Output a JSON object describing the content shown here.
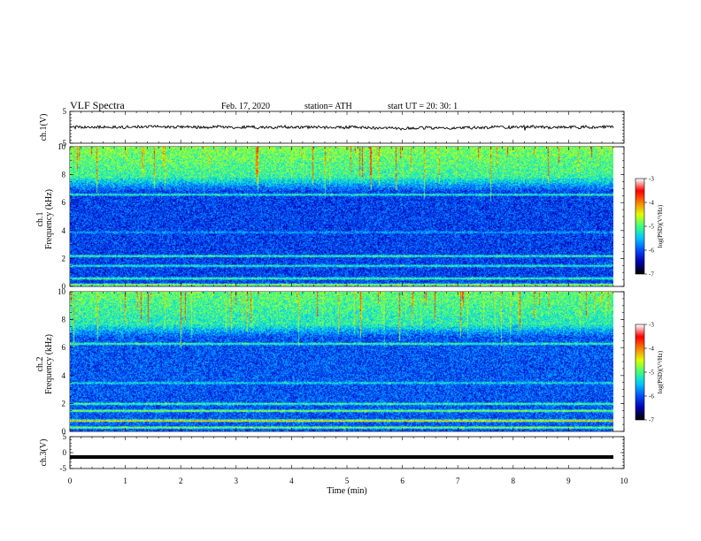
{
  "header": {
    "title": "VLF Spectra",
    "date": "Feb. 17, 2020",
    "station": "station= ATH",
    "start": "start UT =   20: 30: 1"
  },
  "chart_data": [
    {
      "type": "line",
      "panel": "ch1-waveform",
      "ylabel": "ch.1(V)",
      "ylim": [
        -5,
        5
      ],
      "yticks": [
        "5",
        "-5"
      ],
      "description_values": "noisy waveform around 0 V, amplitude ~ ±0.6 V",
      "series_color": "#000000"
    },
    {
      "type": "heatmap",
      "panel": "ch1-spectrogram",
      "ylabel": "ch.1\nFrequency (kHz)",
      "ylim": [
        0,
        10
      ],
      "yticks": [
        "0",
        "2",
        "4",
        "6",
        "8",
        "10"
      ],
      "xlim": [
        0,
        9.82
      ],
      "colorbar": {
        "label": "log(PSD)(V²/Hz)",
        "range": [
          -7,
          -3
        ],
        "ticks": [
          "-3",
          "-4",
          "-5",
          "-6",
          "-7"
        ],
        "colors": [
          "#000000",
          "#0000b0",
          "#0050ff",
          "#00c8ff",
          "#40ff80",
          "#e0ff00",
          "#ff8000",
          "#ff0000",
          "#ffffff"
        ]
      },
      "bands_khz": [
        {
          "f": 0.15,
          "v": -4.2
        },
        {
          "f": 0.6,
          "v": -4.8
        },
        {
          "f": 1.5,
          "v": -5.0
        },
        {
          "f": 2.2,
          "v": -4.9
        },
        {
          "f": 3.9,
          "v": -5.6
        },
        {
          "f": 6.6,
          "v": -5.0
        },
        {
          "f": 7.5,
          "v": -5.4
        }
      ],
      "background_level": -6.1,
      "high_freq_level": -5.1
    },
    {
      "type": "heatmap",
      "panel": "ch2-spectrogram",
      "ylabel": "ch.2\nFrequency (kHz)",
      "ylim": [
        0,
        10
      ],
      "yticks": [
        "0",
        "2",
        "4",
        "6",
        "8",
        "10"
      ],
      "xlim": [
        0,
        9.82
      ],
      "colorbar": {
        "label": "log(PSD)(V²/Hz)",
        "range": [
          -7,
          -3
        ],
        "ticks": [
          "-3",
          "-4",
          "-5",
          "-6",
          "-7"
        ],
        "colors": [
          "#000000",
          "#0000b0",
          "#0050ff",
          "#00c8ff",
          "#40ff80",
          "#e0ff00",
          "#ff8000",
          "#ff0000",
          "#ffffff"
        ]
      },
      "bands_khz": [
        {
          "f": 0.3,
          "v": -4.5
        },
        {
          "f": 0.8,
          "v": -3.9
        },
        {
          "f": 1.5,
          "v": -4.5
        },
        {
          "f": 2.0,
          "v": -4.8
        },
        {
          "f": 3.5,
          "v": -5.2
        },
        {
          "f": 6.3,
          "v": -4.9
        }
      ],
      "background_level": -6.0,
      "high_freq_level": -5.2
    },
    {
      "type": "line",
      "panel": "ch3-waveform",
      "ylabel": "ch.3(V)",
      "ylim": [
        -5,
        5
      ],
      "yticks": [
        "5",
        "0",
        "-5"
      ],
      "constant_value": -1.4,
      "series_color": "#000000"
    }
  ],
  "xaxis": {
    "label": "Time (min)",
    "ticks": [
      "0",
      "1",
      "2",
      "3",
      "4",
      "5",
      "6",
      "7",
      "8",
      "9",
      "10"
    ],
    "xlim": [
      0,
      10
    ]
  }
}
